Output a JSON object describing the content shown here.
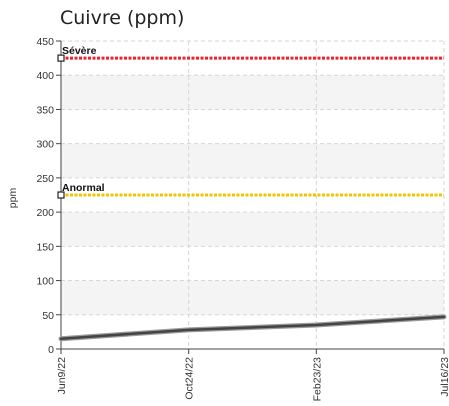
{
  "chart_data": {
    "type": "line",
    "title": "Cuivre (ppm)",
    "ylabel": "ppm",
    "xlabel": "",
    "ylim": [
      0,
      450
    ],
    "yticks": [
      0,
      50,
      100,
      150,
      200,
      250,
      300,
      350,
      400,
      450
    ],
    "xticks": [
      "Jun9/22",
      "Oct24/22",
      "Feb23/23",
      "Jul16/23"
    ],
    "grid": true,
    "series": [
      {
        "x": [
          "Jun9/22",
          "Oct24/22",
          "Feb23/23",
          "Jul16/23"
        ],
        "values": [
          15,
          28,
          35,
          47
        ],
        "color": "#444444"
      }
    ],
    "reference_lines": [
      {
        "label": "Sévère",
        "value": 425,
        "color": "#e8242c"
      },
      {
        "label": "Anormal",
        "value": 225,
        "color": "#f2c500"
      }
    ]
  }
}
